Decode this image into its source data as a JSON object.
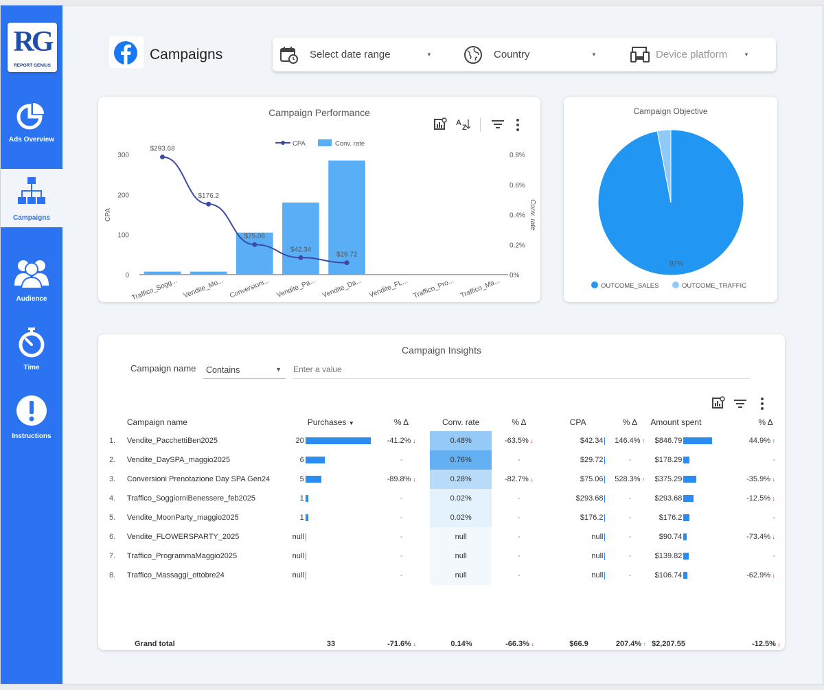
{
  "app": {
    "logo_letters": "RG",
    "logo_subtitle": "REPORT GENIUS"
  },
  "sidebar": {
    "items": [
      {
        "label": "Ads Overview",
        "icon": "pie-chart-icon",
        "active": false
      },
      {
        "label": "Campaigns",
        "icon": "hierarchy-icon",
        "active": true
      },
      {
        "label": "Audience",
        "icon": "users-icon",
        "active": false
      },
      {
        "label": "Time",
        "icon": "stopwatch-icon",
        "active": false
      },
      {
        "label": "Instructions",
        "icon": "exclamation-icon",
        "active": false
      }
    ]
  },
  "header": {
    "title": "Campaigns",
    "brand_icon": "facebook-icon",
    "filters": {
      "date": {
        "label": "Select date range",
        "icon": "calendar-icon"
      },
      "country": {
        "label": "Country",
        "icon": "globe-icon"
      },
      "device": {
        "label": "Device platform",
        "icon": "devices-icon"
      }
    }
  },
  "colors": {
    "sidebar": "#2b73f0",
    "bar": "#5aaef5",
    "line": "#3d4aa3",
    "pie_sales": "#2196f3",
    "pie_traffic": "#90caf9",
    "table_bar": "#2b8cf2",
    "down": "#e03030",
    "up": "#1e9c48"
  },
  "performance_chart": {
    "title": "Campaign Performance",
    "chart_data": {
      "type": "bar",
      "title": "Campaign Performance",
      "categories": [
        "Traffico_Sogg...",
        "Vendite_Mo...",
        "Conversioni...",
        "Vendite_Pa...",
        "Vendite_Da...",
        "Vendite_FL...",
        "Traffico_Pro...",
        "Traffico_Ma..."
      ],
      "series": [
        {
          "name": "Conv. rate",
          "type": "bar",
          "axis": "right",
          "values": [
            0.02,
            0.02,
            0.28,
            0.48,
            0.76,
            null,
            null,
            null
          ]
        },
        {
          "name": "CPA",
          "type": "line",
          "axis": "left",
          "values": [
            293.68,
            176.2,
            75.06,
            42.34,
            29.72,
            null,
            null,
            null
          ]
        }
      ],
      "data_labels": [
        "$293.68",
        "$176.2",
        "$75.06",
        "$42.34",
        "$29.72"
      ],
      "ylabel": "CPA",
      "y2label": "Conv. rate",
      "ylim": [
        0,
        300
      ],
      "y2lim": [
        0,
        0.8
      ],
      "yticks": [
        "0",
        "100",
        "200",
        "300"
      ],
      "y2ticks": [
        "0%",
        "0.2%",
        "0.4%",
        "0.6%",
        "0.8%"
      ],
      "legend": "top-center",
      "grid": false
    }
  },
  "objective_chart": {
    "title": "Campaign Objective",
    "chart_data": {
      "type": "pie",
      "title": "Campaign Objective",
      "categories": [
        "OUTCOME_SALES",
        "OUTCOME_TRAFFIC"
      ],
      "values": [
        97,
        3
      ],
      "data_labels": [
        "97%"
      ],
      "legend": "bottom"
    }
  },
  "insights": {
    "title": "Campaign Insights",
    "filter": {
      "field_label": "Campaign name",
      "operator": "Contains",
      "placeholder": "Enter a value"
    },
    "columns": [
      "Campaign name",
      "Purchases",
      "% Δ",
      "Conv. rate",
      "% Δ",
      "CPA",
      "% Δ",
      "Amount spent",
      "% Δ"
    ],
    "rows": [
      {
        "n": "1.",
        "name": "Vendite_PacchettiBen2025",
        "purchases": "20",
        "purchases_frac": 1.0,
        "p_delta": "-41.2%",
        "p_dir": "down",
        "conv": "0.48%",
        "conv_heat": 0.63,
        "c_delta": "-63.5%",
        "c_dir": "down",
        "cpa": "$42.34",
        "cpa_delta": "146.4%",
        "cpa_dir": "up",
        "spent": "$846.79",
        "spent_frac": 1.0,
        "s_delta": "44.9%",
        "s_dir": "up"
      },
      {
        "n": "2.",
        "name": "Vendite_DaySPA_maggio2025",
        "purchases": "6",
        "purchases_frac": 0.3,
        "p_delta": "-",
        "p_dir": "none",
        "conv": "0.76%",
        "conv_heat": 1.0,
        "c_delta": "-",
        "c_dir": "none",
        "cpa": "$29.72",
        "cpa_delta": "-",
        "cpa_dir": "none",
        "spent": "$178.29",
        "spent_frac": 0.21,
        "s_delta": "-",
        "s_dir": "none"
      },
      {
        "n": "3.",
        "name": "Conversioni Prenotazione Day SPA Gen24",
        "purchases": "5",
        "purchases_frac": 0.25,
        "p_delta": "-89.8%",
        "p_dir": "down",
        "conv": "0.28%",
        "conv_heat": 0.37,
        "c_delta": "-82.7%",
        "c_dir": "down",
        "cpa": "$75.06",
        "cpa_delta": "528.3%",
        "cpa_dir": "up",
        "spent": "$375.29",
        "spent_frac": 0.44,
        "s_delta": "-35.9%",
        "s_dir": "down"
      },
      {
        "n": "4.",
        "name": "Traffico_SoggiorniBenessere_feb2025",
        "purchases": "1",
        "purchases_frac": 0.05,
        "p_delta": "-",
        "p_dir": "none",
        "conv": "0.02%",
        "conv_heat": 0.03,
        "c_delta": "-",
        "c_dir": "none",
        "cpa": "$293.68",
        "cpa_delta": "-",
        "cpa_dir": "none",
        "spent": "$293.68",
        "spent_frac": 0.35,
        "s_delta": "-12.5%",
        "s_dir": "down"
      },
      {
        "n": "5.",
        "name": "Vendite_MoonParty_maggio2025",
        "purchases": "1",
        "purchases_frac": 0.05,
        "p_delta": "-",
        "p_dir": "none",
        "conv": "0.02%",
        "conv_heat": 0.03,
        "c_delta": "-",
        "c_dir": "none",
        "cpa": "$176.2",
        "cpa_delta": "-",
        "cpa_dir": "none",
        "spent": "$176.2",
        "spent_frac": 0.21,
        "s_delta": "-",
        "s_dir": "none"
      },
      {
        "n": "6.",
        "name": "Vendite_FLOWERSPARTY_2025",
        "purchases": "null",
        "purchases_frac": 0,
        "p_delta": "-",
        "p_dir": "none",
        "conv": "null",
        "conv_heat": 0,
        "c_delta": "-",
        "c_dir": "none",
        "cpa": "null",
        "cpa_delta": "-",
        "cpa_dir": "none",
        "spent": "$90.74",
        "spent_frac": 0.11,
        "s_delta": "-73.4%",
        "s_dir": "down"
      },
      {
        "n": "7.",
        "name": "Traffico_ProgrammaMaggio2025",
        "purchases": "null",
        "purchases_frac": 0,
        "p_delta": "-",
        "p_dir": "none",
        "conv": "null",
        "conv_heat": 0,
        "c_delta": "-",
        "c_dir": "none",
        "cpa": "null",
        "cpa_delta": "-",
        "cpa_dir": "none",
        "spent": "$139.82",
        "spent_frac": 0.17,
        "s_delta": "-",
        "s_dir": "none"
      },
      {
        "n": "8.",
        "name": "Traffico_Massaggi_ottobre24",
        "purchases": "null",
        "purchases_frac": 0,
        "p_delta": "-",
        "p_dir": "none",
        "conv": "null",
        "conv_heat": 0,
        "c_delta": "-",
        "c_dir": "none",
        "cpa": "null",
        "cpa_delta": "-",
        "cpa_dir": "none",
        "spent": "$106.74",
        "spent_frac": 0.13,
        "s_delta": "-62.9%",
        "s_dir": "down"
      }
    ],
    "grand_total": {
      "label": "Grand total",
      "purchases": "33",
      "p_delta": "-71.6%",
      "conv": "0.14%",
      "c_delta": "-66.3%",
      "cpa": "$66.9",
      "cpa_delta": "207.4%",
      "spent": "$2,207.55",
      "s_delta": "-12.5%"
    }
  }
}
